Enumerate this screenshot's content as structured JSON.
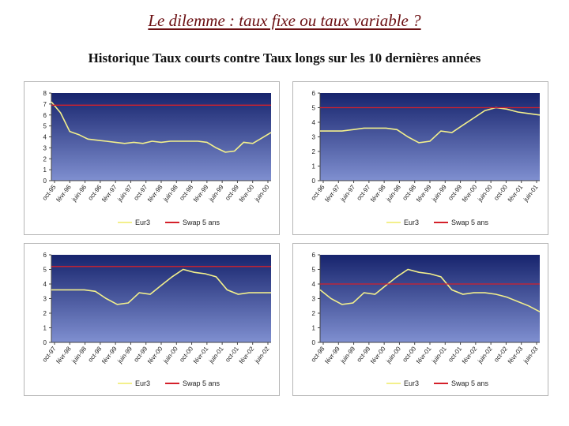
{
  "header": {
    "title": "Le dilemme : taux fixe ou taux variable ?",
    "subtitle": "Historique Taux courts contre Taux longs sur les 10 dernières années"
  },
  "colors": {
    "plot_bg_top": "#17246d",
    "plot_bg_bottom": "#7f8fd0",
    "series_eur3": "#f3f08c",
    "series_swap": "#d4202a"
  },
  "chart_data": [
    {
      "type": "line",
      "title": "",
      "xlabel": "",
      "ylabel": "",
      "ylim": [
        0,
        8
      ],
      "yticks": [
        "0",
        "1",
        "2",
        "3",
        "4",
        "5",
        "6",
        "7",
        "8"
      ],
      "grid": false,
      "legend_position": "bottom",
      "x_labels": [
        "oct-95",
        "févr-96",
        "juin-96",
        "oct-96",
        "févr-97",
        "juin-97",
        "oct-97",
        "févr-98",
        "juin-98",
        "oct-98",
        "févr-99",
        "juin-99",
        "oct-99",
        "févr-00",
        "juin-00"
      ],
      "series": [
        {
          "name": "Eur3",
          "color_key": "series_eur3",
          "values": [
            7.2,
            6.2,
            4.5,
            4.2,
            3.8,
            3.7,
            3.6,
            3.5,
            3.4,
            3.5,
            3.4,
            3.6,
            3.5,
            3.6,
            3.6,
            3.6,
            3.6,
            3.5,
            3.0,
            2.6,
            2.7,
            3.5,
            3.4,
            3.9,
            4.4
          ]
        },
        {
          "name": "Swap 5 ans",
          "color_key": "series_swap",
          "values": [
            6.9,
            6.9
          ]
        }
      ]
    },
    {
      "type": "line",
      "title": "",
      "xlabel": "",
      "ylabel": "",
      "ylim": [
        0,
        6
      ],
      "yticks": [
        "0",
        "1",
        "2",
        "3",
        "4",
        "5",
        "6"
      ],
      "grid": false,
      "legend_position": "bottom",
      "x_labels": [
        "oct-96",
        "févr-97",
        "juin-97",
        "oct-97",
        "févr-98",
        "juin-98",
        "oct-98",
        "févr-99",
        "juin-99",
        "oct-99",
        "févr-00",
        "juin-00",
        "oct-00",
        "févr-01",
        "juin-01"
      ],
      "series": [
        {
          "name": "Eur3",
          "color_key": "series_eur3",
          "values": [
            3.4,
            3.4,
            3.4,
            3.5,
            3.6,
            3.6,
            3.6,
            3.5,
            3.0,
            2.6,
            2.7,
            3.4,
            3.3,
            3.8,
            4.3,
            4.8,
            5.0,
            4.9,
            4.7,
            4.6,
            4.5
          ]
        },
        {
          "name": "Swap 5 ans",
          "color_key": "series_swap",
          "values": [
            5.0,
            5.0
          ]
        }
      ]
    },
    {
      "type": "line",
      "title": "",
      "xlabel": "",
      "ylabel": "",
      "ylim": [
        0,
        6
      ],
      "yticks": [
        "0",
        "1",
        "2",
        "3",
        "4",
        "5",
        "6"
      ],
      "grid": false,
      "legend_position": "bottom",
      "x_labels": [
        "oct-97",
        "févr-98",
        "juin-98",
        "oct-98",
        "févr-99",
        "juin-99",
        "oct-99",
        "févr-00",
        "juin-00",
        "oct-00",
        "févr-01",
        "juin-01",
        "oct-01",
        "févr-02",
        "juin-02"
      ],
      "series": [
        {
          "name": "Eur3",
          "color_key": "series_eur3",
          "values": [
            3.6,
            3.6,
            3.6,
            3.6,
            3.5,
            3.0,
            2.6,
            2.7,
            3.4,
            3.3,
            3.9,
            4.5,
            5.0,
            4.8,
            4.7,
            4.5,
            3.6,
            3.3,
            3.4,
            3.4,
            3.4
          ]
        },
        {
          "name": "Swap 5 ans",
          "color_key": "series_swap",
          "values": [
            5.2,
            5.2
          ]
        }
      ]
    },
    {
      "type": "line",
      "title": "",
      "xlabel": "",
      "ylabel": "",
      "ylim": [
        0,
        6
      ],
      "yticks": [
        "0",
        "1",
        "2",
        "3",
        "4",
        "5",
        "6"
      ],
      "grid": false,
      "legend_position": "bottom",
      "x_labels": [
        "oct-98",
        "févr-99",
        "juin-99",
        "oct-99",
        "févr-00",
        "juin-00",
        "oct-00",
        "févr-01",
        "juin-01",
        "oct-01",
        "févr-02",
        "juin-02",
        "oct-02",
        "févr-03",
        "juin-03"
      ],
      "series": [
        {
          "name": "Eur3",
          "color_key": "series_eur3",
          "values": [
            3.6,
            3.0,
            2.6,
            2.7,
            3.4,
            3.3,
            3.9,
            4.5,
            5.0,
            4.8,
            4.7,
            4.5,
            3.6,
            3.3,
            3.4,
            3.4,
            3.3,
            3.1,
            2.8,
            2.5,
            2.1
          ]
        },
        {
          "name": "Swap 5 ans",
          "color_key": "series_swap",
          "values": [
            4.0,
            4.0
          ]
        }
      ]
    }
  ]
}
